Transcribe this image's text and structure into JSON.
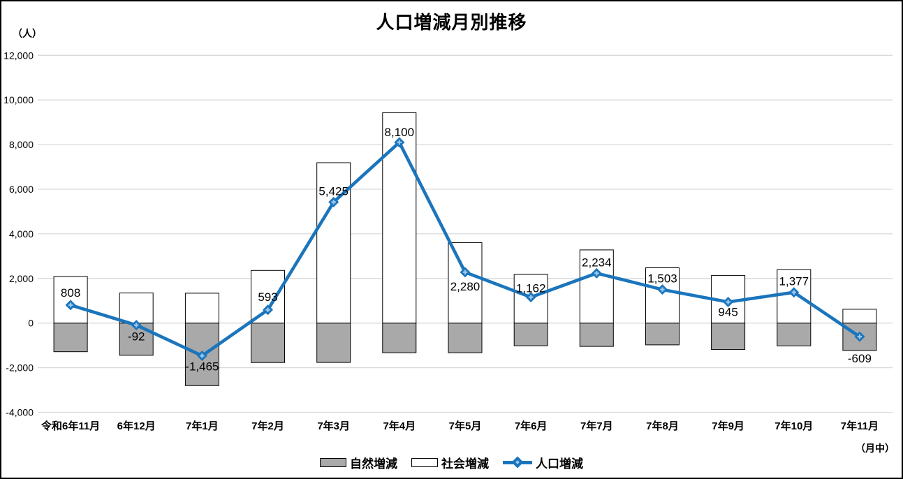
{
  "chart_data": {
    "type": "bar+line combo",
    "title": "人口増減月別推移",
    "x_note": "（月中）",
    "categories": [
      "令和6年11月",
      "6年12月",
      "7年1月",
      "7年2月",
      "7年3月",
      "7年4月",
      "7年5月",
      "7年6月",
      "7年7月",
      "7年8月",
      "7年9月",
      "7年10月",
      "7年11月"
    ],
    "series": [
      {
        "name": "自然増減",
        "type": "bar",
        "color": "#a9a9a9",
        "values": [
          -1282,
          -1442,
          -2805,
          -1767,
          -1765,
          -1330,
          -1330,
          -1018,
          -1046,
          -977,
          -1185,
          -1023,
          -1229
        ]
      },
      {
        "name": "社会増減",
        "type": "bar",
        "color": "#ffffff",
        "values": [
          2090,
          1350,
          1340,
          2360,
          7190,
          9430,
          3610,
          2180,
          3280,
          2480,
          2130,
          2400,
          620
        ]
      },
      {
        "name": "人口増減",
        "type": "line",
        "color": "#1b75bc",
        "values": [
          808,
          -92,
          -1465,
          593,
          5425,
          8100,
          2280,
          1162,
          2234,
          1503,
          945,
          1377,
          -609
        ],
        "labels": [
          "808",
          "-92",
          "-1,465",
          "593",
          "5,425",
          "8,100",
          "2,280",
          "1,162",
          "2,234",
          "1,503",
          "945",
          "1,377",
          "-609"
        ],
        "label_side": [
          "above",
          "below",
          "below",
          "above",
          "above",
          "above",
          "below",
          "above",
          "above",
          "above",
          "below",
          "above",
          "below"
        ]
      }
    ],
    "y_axis": {
      "label": "（人）",
      "min": -4000,
      "max": 12000,
      "step": 2000,
      "tick_labels": [
        "12,000",
        "10,000",
        "8,000",
        "6,000",
        "4,000",
        "2,000",
        "0",
        "-2,000",
        "-4,000"
      ]
    },
    "grid": true,
    "legend_position": "bottom",
    "colors": {
      "line": "#1b75bc",
      "marker_center": "#9dc9ef",
      "bar_natural": "#a9a9a9",
      "bar_social": "#ffffff",
      "bar_border": "#000000",
      "gridline": "#d9d9d9",
      "text": "#000000"
    },
    "layout": {
      "label_dy": [
        -12,
        22,
        21,
        -13,
        -10,
        -9,
        26,
        -7,
        -10,
        -10,
        20,
        -10,
        37
      ]
    }
  }
}
